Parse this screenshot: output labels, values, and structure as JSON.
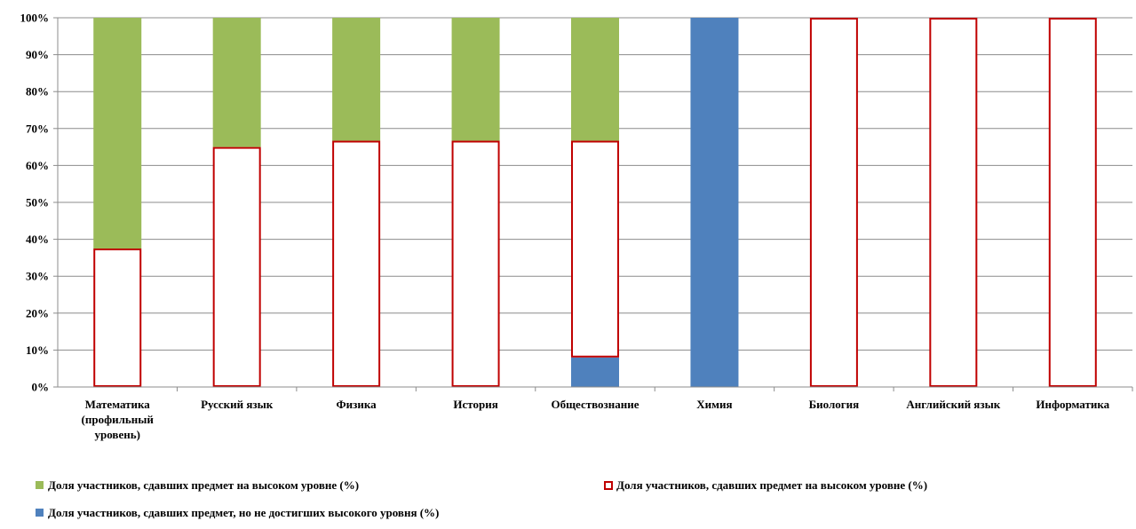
{
  "chart_data": {
    "type": "bar",
    "stacked": true,
    "percent_stacked": true,
    "categories": [
      [
        "Математика",
        "(профильный",
        "уровень)"
      ],
      [
        "Русский язык"
      ],
      [
        "Физика"
      ],
      [
        "История"
      ],
      [
        "Обществознание"
      ],
      [
        "Химия"
      ],
      [
        "Биология"
      ],
      [
        "Английский язык"
      ],
      [
        "Информатика"
      ]
    ],
    "series": [
      {
        "name": "Доля участников, сдавших предмет, но не достигших высокого уровня (%)",
        "color": "#4f81bd",
        "style": "filled",
        "values": [
          0,
          0,
          0,
          0,
          8,
          100,
          0,
          0,
          0
        ]
      },
      {
        "name": "Доля участников, сдавших предмет на  высоком уровне (%)",
        "color": "#c00000",
        "style": "outline",
        "values": [
          37.5,
          65,
          66.7,
          66.7,
          58.7,
          0,
          100,
          100,
          100
        ]
      },
      {
        "name": "Доля участников, сдавших предмет на  высоком уровне (%)",
        "color": "#9bbb59",
        "style": "filled",
        "values": [
          62.5,
          35,
          33.3,
          33.3,
          33.3,
          0,
          0,
          0,
          0
        ]
      }
    ],
    "ylim": [
      0,
      100
    ],
    "yticks": [
      "0%",
      "10%",
      "20%",
      "30%",
      "40%",
      "50%",
      "60%",
      "70%",
      "80%",
      "90%",
      "100%"
    ],
    "grid": true,
    "legend_position": "bottom",
    "legend_order": [
      2,
      1,
      0
    ]
  }
}
